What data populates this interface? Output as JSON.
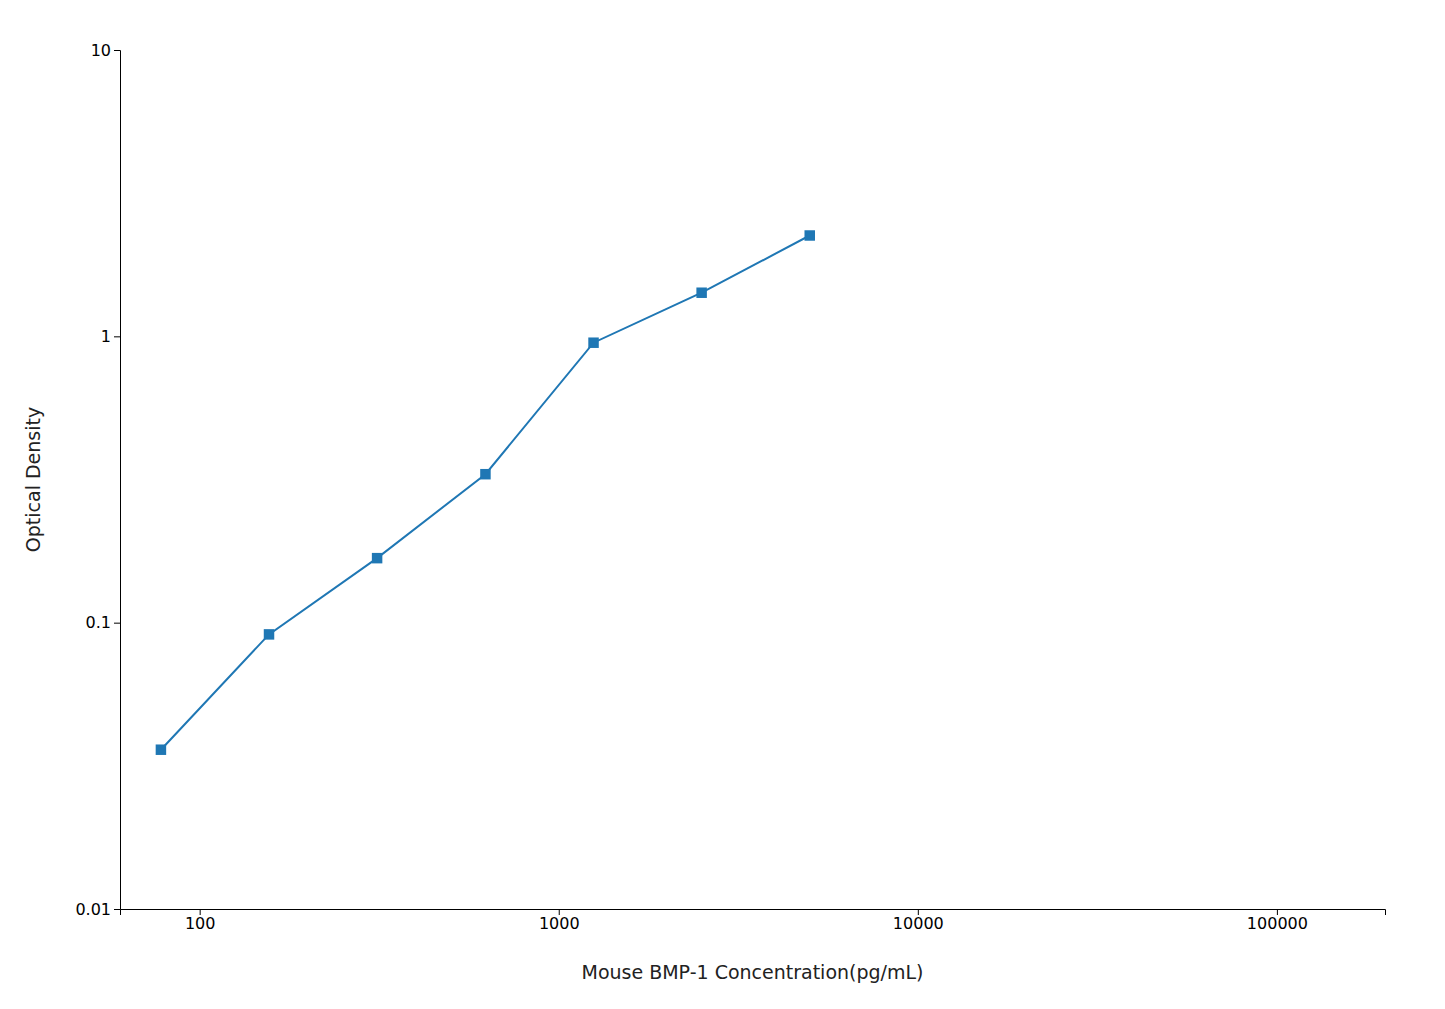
{
  "chart_data": {
    "type": "line",
    "xlabel": "Mouse BMP-1 Concentration(pg/mL)",
    "ylabel": "Optical Density",
    "x": [
      78,
      156,
      312,
      625,
      1250,
      2500,
      5000
    ],
    "values": [
      0.036,
      0.091,
      0.168,
      0.33,
      0.95,
      1.42,
      2.25
    ],
    "xlim": [
      60,
      200000
    ],
    "ylim": [
      0.01,
      10
    ],
    "xticks": [
      100,
      1000,
      10000,
      100000
    ],
    "yticks": [
      0.01,
      0.1,
      1,
      10
    ],
    "log": true,
    "marker": "square"
  }
}
